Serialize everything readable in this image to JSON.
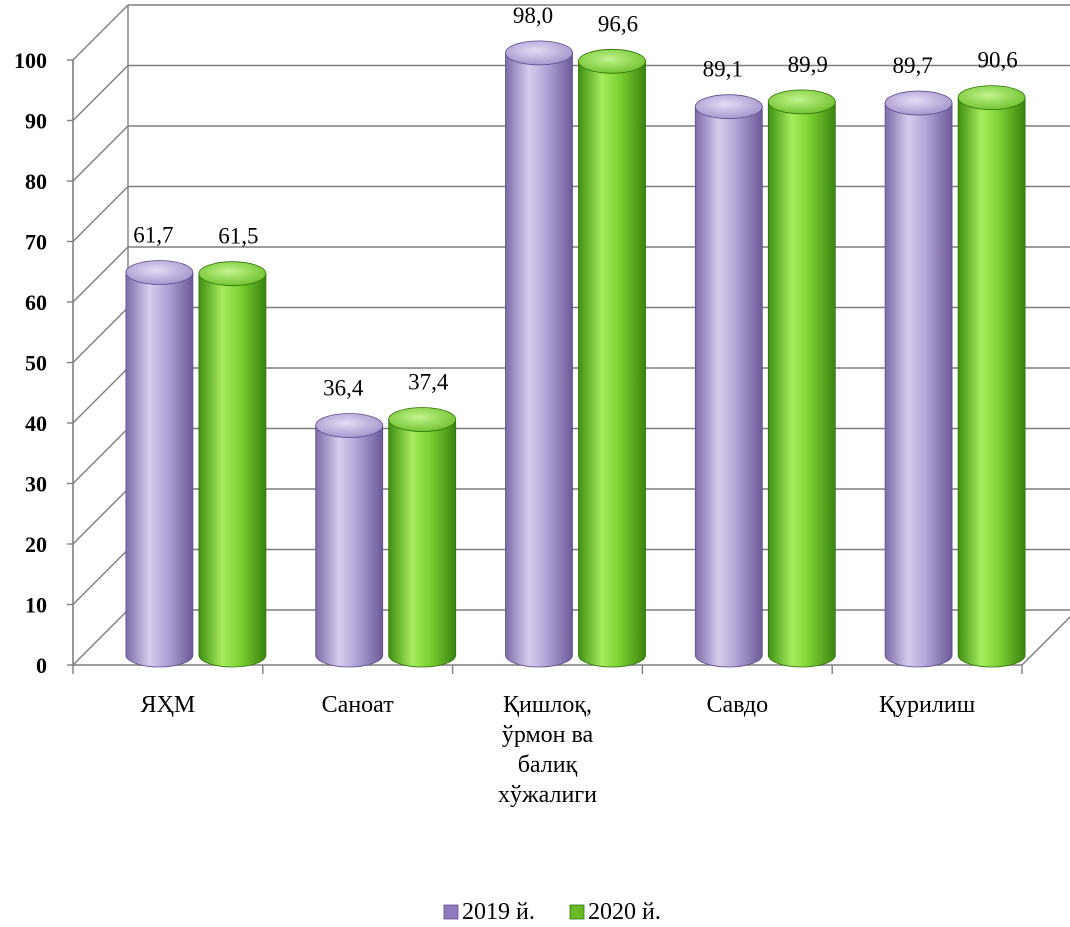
{
  "chart_data": {
    "type": "bar",
    "categories": [
      [
        "ЯҲМ"
      ],
      [
        "Саноат"
      ],
      [
        "Қишлоқ,",
        "ўрмон ва",
        "балиқ",
        "хўжалиги"
      ],
      [
        "Савдо"
      ],
      [
        "Қурилиш"
      ]
    ],
    "series": [
      {
        "name": "2019 й.",
        "values": [
          61.7,
          36.4,
          98.0,
          89.1,
          89.7
        ],
        "labels": [
          "61,7",
          "36,4",
          "98,0",
          "89,1",
          "89,7"
        ],
        "color": "#a897cc"
      },
      {
        "name": "2020 й.",
        "values": [
          61.5,
          37.4,
          96.6,
          89.9,
          90.6
        ],
        "labels": [
          "61,5",
          "37,4",
          "96,6",
          "89,9",
          "90,6"
        ],
        "color": "#7fcc3a"
      }
    ],
    "yticks": [
      0,
      10,
      20,
      30,
      40,
      50,
      60,
      70,
      80,
      90,
      100
    ],
    "ylim": [
      0,
      100
    ],
    "grid": true,
    "legend_position": "bottom",
    "style": "3d-cylinder"
  }
}
